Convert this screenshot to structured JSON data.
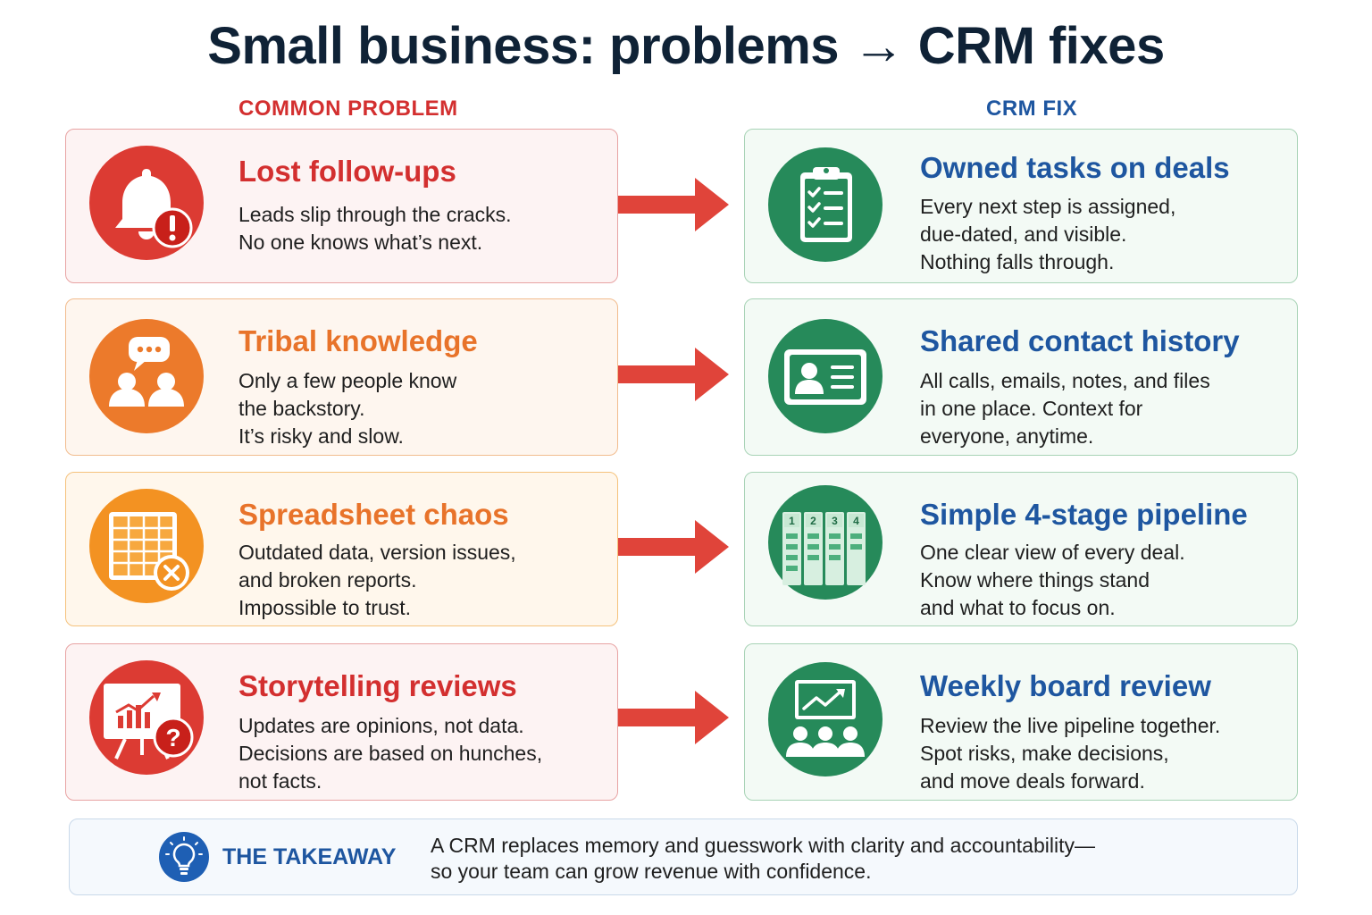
{
  "title": "Small business: problems → CRM fixes",
  "columns": {
    "problem": "COMMON PROBLEM",
    "fix": "CRM FIX"
  },
  "colors": {
    "title": "#0f2236",
    "problem_red": "#d32f2f",
    "problem_orange": "#e8732a",
    "fix_green": "#2e8b57",
    "fix_blue": "#1e56a0",
    "arrow": "#e0443a"
  },
  "rows": [
    {
      "problem": {
        "title": "Lost follow-ups",
        "lines": [
          "Leads slip through the cracks.",
          "No one knows what’s next."
        ],
        "icon": "bell-alert-icon"
      },
      "fix": {
        "title": "Owned tasks on deals",
        "lines": [
          "Every next step is assigned,",
          "due-dated, and visible.",
          "Nothing falls through."
        ],
        "icon": "clipboard-checklist-icon"
      }
    },
    {
      "problem": {
        "title": "Tribal knowledge",
        "lines": [
          "Only a few people know",
          "the backstory.",
          "It’s risky and slow."
        ],
        "icon": "people-chat-icon"
      },
      "fix": {
        "title": "Shared contact history",
        "lines": [
          "All calls, emails, notes, and files",
          "in one place. Context for",
          "everyone, anytime."
        ],
        "icon": "contact-card-icon"
      }
    },
    {
      "problem": {
        "title": "Spreadsheet chaos",
        "lines": [
          "Outdated data, version issues,",
          "and broken reports.",
          "Impossible to trust."
        ],
        "icon": "spreadsheet-error-icon"
      },
      "fix": {
        "title": "Simple 4-stage pipeline",
        "lines": [
          "One clear view of every deal.",
          "Know where things stand",
          "and what to focus on."
        ],
        "icon": "pipeline-board-icon",
        "stages": [
          "1",
          "2",
          "3",
          "4"
        ]
      }
    },
    {
      "problem": {
        "title": "Storytelling reviews",
        "lines": [
          "Updates are opinions, not data.",
          "Decisions are based on hunches,",
          "not facts."
        ],
        "icon": "presentation-question-icon"
      },
      "fix": {
        "title": "Weekly board review",
        "lines": [
          "Review the live pipeline together.",
          "Spot risks, make decisions,",
          "and move deals forward."
        ],
        "icon": "team-meeting-icon"
      }
    }
  ],
  "takeaway": {
    "label": "THE TAKEAWAY",
    "lines": [
      "A CRM replaces memory and guesswork with clarity and accountability—",
      "so your team can grow revenue with confidence."
    ],
    "icon": "lightbulb-icon"
  }
}
